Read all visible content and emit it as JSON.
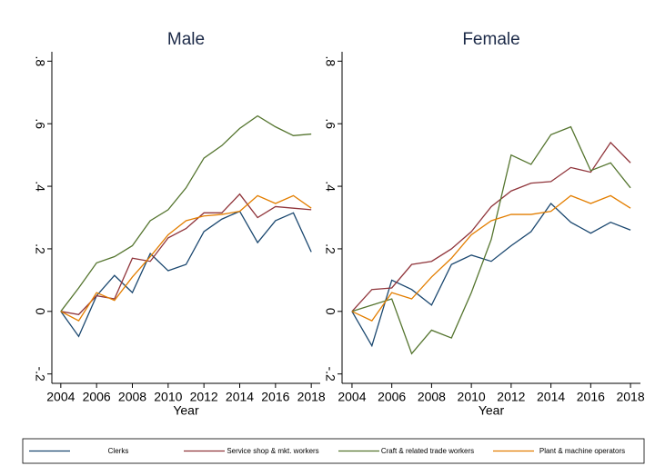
{
  "chart_data": [
    {
      "type": "line",
      "title": "Male",
      "x_label": "Year",
      "x": [
        2004,
        2005,
        2006,
        2007,
        2008,
        2009,
        2010,
        2011,
        2012,
        2013,
        2014,
        2015,
        2016,
        2017,
        2018
      ],
      "xlim": [
        2003.5,
        2018.5
      ],
      "xticks": [
        2004,
        2006,
        2008,
        2010,
        2012,
        2014,
        2016,
        2018
      ],
      "ylim": [
        -0.23,
        0.83
      ],
      "yticks": [
        {
          "value": -0.2,
          "label": "-.2"
        },
        0,
        {
          "value": 0.2,
          "label": ".2"
        },
        {
          "value": 0.4,
          "label": ".4"
        },
        {
          "value": 0.6,
          "label": ".6"
        },
        {
          "value": 0.8,
          "label": ".8"
        }
      ],
      "series": [
        {
          "name": "Clerks",
          "color": "#1a476f",
          "values": [
            0,
            -0.08,
            0.05,
            0.115,
            0.06,
            0.185,
            0.13,
            0.15,
            0.255,
            0.295,
            0.32,
            0.22,
            0.29,
            0.315,
            0.19
          ]
        },
        {
          "name": "Service shop & mkt. workers",
          "color": "#90353b",
          "values": [
            0,
            -0.01,
            0.05,
            0.04,
            0.17,
            0.16,
            0.235,
            0.265,
            0.315,
            0.315,
            0.375,
            0.3,
            0.335,
            0.33,
            0.325
          ]
        },
        {
          "name": "Craft & related trade workers",
          "color": "#55752f",
          "values": [
            0,
            0.075,
            0.155,
            0.175,
            0.21,
            0.29,
            0.325,
            0.395,
            0.49,
            0.53,
            0.585,
            0.625,
            0.59,
            0.562,
            0.567
          ]
        },
        {
          "name": "Plant & machine operators",
          "color": "#e37e00",
          "values": [
            0,
            -0.03,
            0.06,
            0.035,
            0.11,
            0.175,
            0.245,
            0.29,
            0.305,
            0.31,
            0.32,
            0.37,
            0.345,
            0.37,
            0.33
          ]
        }
      ]
    },
    {
      "type": "line",
      "title": "Female",
      "x_label": "Year",
      "x": [
        2004,
        2005,
        2006,
        2007,
        2008,
        2009,
        2010,
        2011,
        2012,
        2013,
        2014,
        2015,
        2016,
        2017,
        2018
      ],
      "xlim": [
        2003.5,
        2018.5
      ],
      "xticks": [
        2004,
        2006,
        2008,
        2010,
        2012,
        2014,
        2016,
        2018
      ],
      "ylim": [
        -0.23,
        0.83
      ],
      "yticks": [
        {
          "value": -0.2,
          "label": "-.2"
        },
        0,
        {
          "value": 0.2,
          "label": ".2"
        },
        {
          "value": 0.4,
          "label": ".4"
        },
        {
          "value": 0.6,
          "label": ".6"
        },
        {
          "value": 0.8,
          "label": ".8"
        }
      ],
      "series": [
        {
          "color": "#1a476f",
          "values": [
            0,
            -0.11,
            0.1,
            0.07,
            0.02,
            0.15,
            0.18,
            0.16,
            0.21,
            0.255,
            0.345,
            0.285,
            0.25,
            0.285,
            0.26
          ]
        },
        {
          "color": "#90353b",
          "values": [
            0,
            0.07,
            0.075,
            0.15,
            0.16,
            0.2,
            0.255,
            0.335,
            0.385,
            0.41,
            0.415,
            0.46,
            0.445,
            0.54,
            0.475
          ]
        },
        {
          "color": "#55752f",
          "values": [
            0,
            0.02,
            0.04,
            -0.135,
            -0.06,
            -0.085,
            0.06,
            0.23,
            0.5,
            0.47,
            0.565,
            0.59,
            0.45,
            0.475,
            0.395
          ]
        },
        {
          "color": "#e37e00",
          "values": [
            0,
            -0.03,
            0.06,
            0.04,
            0.11,
            0.17,
            0.245,
            0.29,
            0.31,
            0.31,
            0.32,
            0.37,
            0.345,
            0.37,
            0.33
          ]
        }
      ]
    }
  ]
}
